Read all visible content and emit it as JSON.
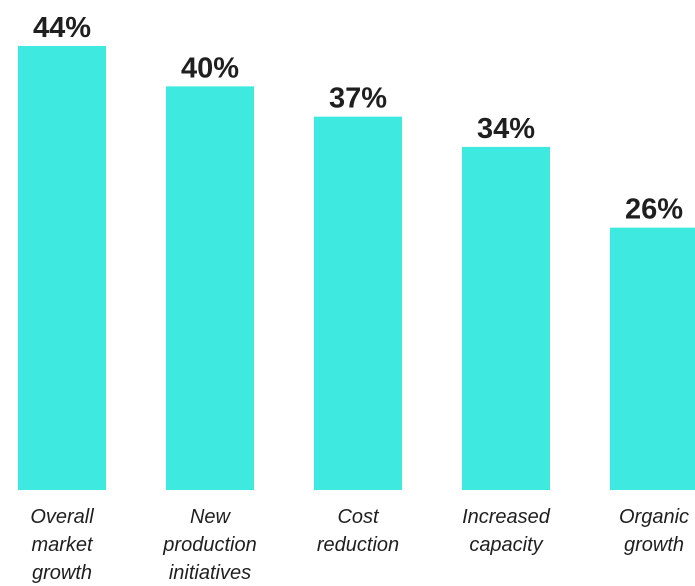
{
  "chart_data": {
    "type": "bar",
    "title": "",
    "xlabel": "",
    "ylabel": "",
    "categories": [
      [
        "Overall",
        "market",
        "growth"
      ],
      [
        "New",
        "production",
        "initiatives"
      ],
      [
        "Cost",
        "reduction"
      ],
      [
        "Increased",
        "capacity"
      ],
      [
        "Organic",
        "growth"
      ]
    ],
    "values": [
      44,
      40,
      37,
      34,
      26
    ],
    "value_labels": [
      "44%",
      "40%",
      "37%",
      "34%",
      "26%"
    ],
    "ylim": [
      0,
      44
    ],
    "grid": false,
    "bar_color": "#3EEADF"
  }
}
